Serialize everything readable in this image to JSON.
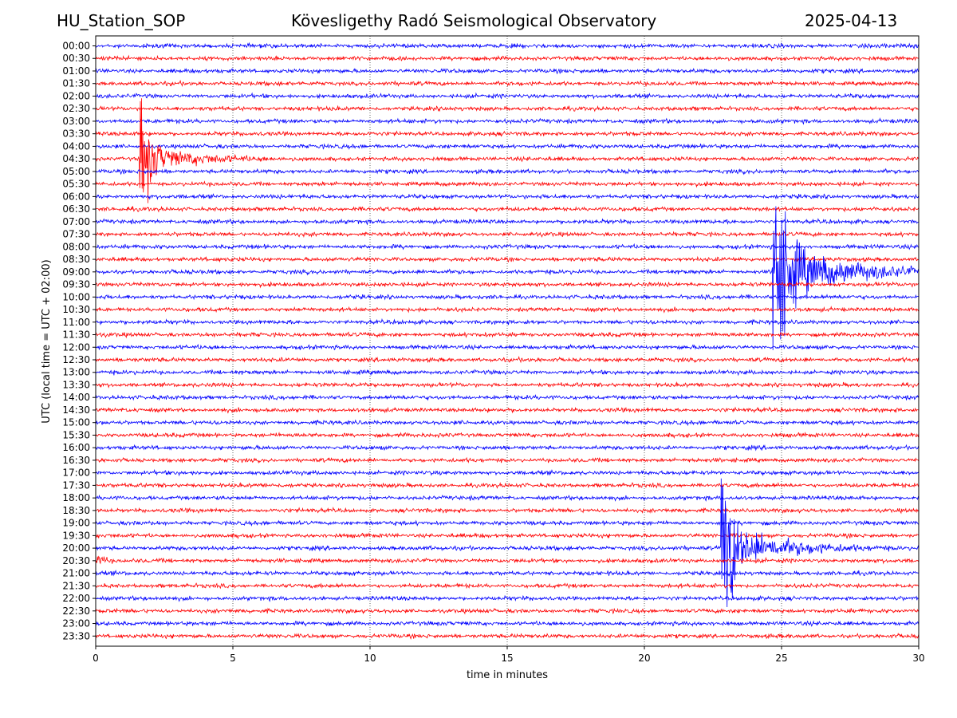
{
  "header": {
    "station": "HU_Station_SOP",
    "observatory": "Kövesligethy Radó Seismological Observatory",
    "date": "2025-04-13"
  },
  "chart_data": {
    "type": "line",
    "subtype": "helicorder",
    "xlabel": "time in minutes",
    "ylabel": "UTC (local time = UTC + 02:00)",
    "xlim": [
      0,
      30
    ],
    "x_ticks": [
      0,
      5,
      10,
      15,
      20,
      25,
      30
    ],
    "x_tick_labels": [
      "0",
      "5",
      "10",
      "15",
      "20",
      "25",
      "30"
    ],
    "grid": "vertical dotted lines at x ticks",
    "row_labels": [
      "00:00",
      "00:30",
      "01:00",
      "01:30",
      "02:00",
      "02:30",
      "03:00",
      "03:30",
      "04:00",
      "04:30",
      "05:00",
      "05:30",
      "06:00",
      "06:30",
      "07:00",
      "07:30",
      "08:00",
      "08:30",
      "09:00",
      "09:30",
      "10:00",
      "10:30",
      "11:00",
      "11:30",
      "12:00",
      "12:30",
      "13:00",
      "13:30",
      "14:00",
      "14:30",
      "15:00",
      "15:30",
      "16:00",
      "16:30",
      "17:00",
      "17:30",
      "18:00",
      "18:30",
      "19:00",
      "19:30",
      "20:00",
      "20:30",
      "21:00",
      "21:30",
      "22:00",
      "22:30",
      "23:00",
      "23:30"
    ],
    "row_colors": [
      "#0000ff",
      "#ff0000"
    ],
    "events": [
      {
        "row": "04:30",
        "start_min": 1.6,
        "peak_amp_rows": 4.5,
        "coda_end_min": 9.0
      },
      {
        "row": "09:00",
        "start_min": 24.65,
        "peak_amp_rows": 11.0,
        "coda_end_min": 30.0
      },
      {
        "row": "20:00",
        "start_min": 22.8,
        "peak_amp_rows": 7.5,
        "coda_end_min": 30.0
      },
      {
        "row": "20:30",
        "start_min": 0.0,
        "peak_amp_rows": 0.5,
        "coda_end_min": 7.5
      }
    ]
  }
}
